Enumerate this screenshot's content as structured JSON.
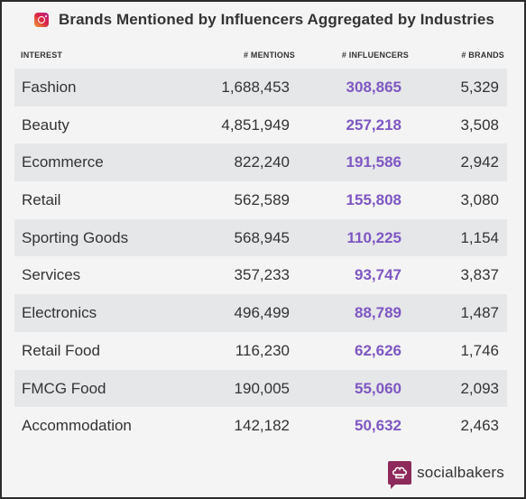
{
  "header": {
    "icon": "instagram-icon",
    "title": "Brands Mentioned by Influencers Aggregated by Industries"
  },
  "columns": {
    "interest": "INTEREST",
    "mentions": "# MENTIONS",
    "influencers": "# INFLUENCERS",
    "brands": "# BRANDS"
  },
  "rows": [
    {
      "interest": "Fashion",
      "mentions": "1,688,453",
      "influencers": "308,865",
      "brands": "5,329"
    },
    {
      "interest": "Beauty",
      "mentions": "4,851,949",
      "influencers": "257,218",
      "brands": "3,508"
    },
    {
      "interest": "Ecommerce",
      "mentions": "822,240",
      "influencers": "191,586",
      "brands": "2,942"
    },
    {
      "interest": "Retail",
      "mentions": "562,589",
      "influencers": "155,808",
      "brands": "3,080"
    },
    {
      "interest": "Sporting Goods",
      "mentions": "568,945",
      "influencers": "110,225",
      "brands": "1,154"
    },
    {
      "interest": "Services",
      "mentions": "357,233",
      "influencers": "93,747",
      "brands": "3,837"
    },
    {
      "interest": "Electronics",
      "mentions": "496,499",
      "influencers": "88,789",
      "brands": "1,487"
    },
    {
      "interest": "Retail Food",
      "mentions": "116,230",
      "influencers": "62,626",
      "brands": "1,746"
    },
    {
      "interest": "FMCG Food",
      "mentions": "190,005",
      "influencers": "55,060",
      "brands": "2,093"
    },
    {
      "interest": "Accommodation",
      "mentions": "142,182",
      "influencers": "50,632",
      "brands": "2,463"
    }
  ],
  "footer": {
    "brand_icon": "socialbakers-chef-hat-icon",
    "brand_name": "socialbakers"
  },
  "colors": {
    "influencers_text": "#7e57c2",
    "row_stripe": "#e6e7e9",
    "background": "#f4f4f4",
    "brand_logo": "#8e2a5b"
  }
}
